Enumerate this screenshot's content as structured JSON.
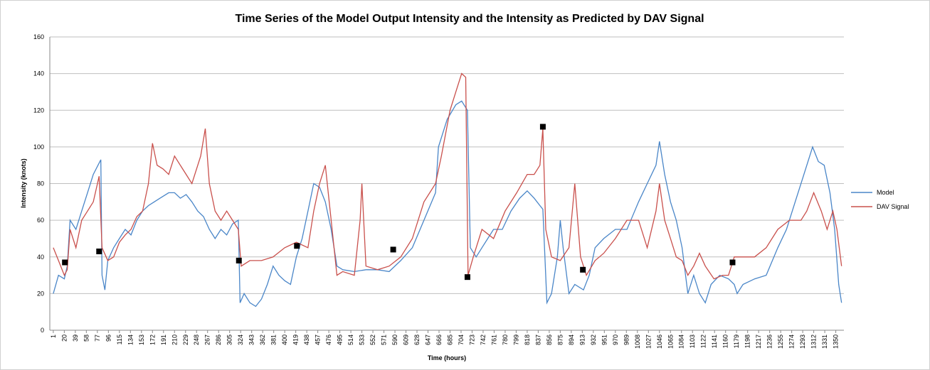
{
  "chart_data": {
    "type": "line",
    "title": "Time Series of the Model Output Intensity and the Intensity as Predicted by DAV Signal",
    "x_label": "Time (hours)",
    "y_label": "Intensity (knots)",
    "xlim": [
      -5,
      1364
    ],
    "ylim": [
      0,
      160
    ],
    "yticks": [
      0,
      20,
      40,
      60,
      80,
      100,
      120,
      140,
      160
    ],
    "xticks": [
      1,
      20,
      39,
      58,
      77,
      96,
      115,
      134,
      153,
      172,
      191,
      210,
      229,
      248,
      267,
      286,
      305,
      324,
      343,
      362,
      381,
      400,
      419,
      438,
      457,
      476,
      495,
      514,
      533,
      552,
      571,
      590,
      609,
      628,
      647,
      666,
      685,
      704,
      723,
      742,
      761,
      780,
      799,
      818,
      837,
      856,
      875,
      894,
      913,
      932,
      951,
      970,
      989,
      1008,
      1027,
      1046,
      1065,
      1084,
      1103,
      1122,
      1141,
      1160,
      1179,
      1198,
      1217,
      1236,
      1255,
      1274,
      1293,
      1312,
      1331,
      1350
    ],
    "grid": true,
    "legend": "right",
    "series": [
      {
        "name": "Model",
        "color": "#4a86c8",
        "x": [
          1,
          10,
          20,
          25,
          30,
          40,
          50,
          60,
          70,
          78,
          83,
          85,
          90,
          95,
          105,
          115,
          125,
          135,
          145,
          155,
          165,
          175,
          185,
          200,
          210,
          220,
          230,
          240,
          250,
          260,
          270,
          280,
          290,
          300,
          310,
          320,
          323,
          330,
          340,
          350,
          360,
          370,
          380,
          390,
          400,
          410,
          420,
          430,
          440,
          450,
          460,
          470,
          480,
          490,
          500,
          520,
          540,
          560,
          580,
          600,
          620,
          640,
          660,
          665,
          680,
          695,
          705,
          715,
          720,
          730,
          740,
          750,
          760,
          775,
          790,
          805,
          818,
          830,
          840,
          845,
          852,
          860,
          870,
          875,
          880,
          890,
          900,
          915,
          925,
          935,
          950,
          970,
          990,
          1010,
          1025,
          1040,
          1046,
          1055,
          1065,
          1075,
          1085,
          1095,
          1105,
          1115,
          1125,
          1135,
          1150,
          1165,
          1175,
          1180,
          1190,
          1210,
          1230,
          1250,
          1265,
          1280,
          1295,
          1310,
          1320,
          1330,
          1340,
          1348,
          1355,
          1360
        ],
        "values": [
          20,
          30,
          28,
          35,
          60,
          55,
          65,
          75,
          85,
          90,
          93,
          30,
          22,
          38,
          45,
          50,
          55,
          52,
          60,
          65,
          68,
          70,
          72,
          75,
          75,
          72,
          74,
          70,
          65,
          62,
          55,
          50,
          55,
          52,
          58,
          60,
          15,
          20,
          15,
          13,
          17,
          25,
          35,
          30,
          27,
          25,
          40,
          50,
          65,
          80,
          78,
          70,
          55,
          35,
          33,
          32,
          33,
          33,
          32,
          38,
          45,
          60,
          75,
          100,
          115,
          123,
          125,
          120,
          45,
          40,
          45,
          50,
          55,
          55,
          65,
          72,
          76,
          72,
          68,
          66,
          15,
          20,
          40,
          60,
          45,
          20,
          25,
          22,
          30,
          45,
          50,
          55,
          55,
          70,
          80,
          90,
          103,
          85,
          70,
          60,
          45,
          20,
          30,
          20,
          15,
          25,
          30,
          28,
          25,
          20,
          25,
          28,
          30,
          45,
          55,
          70,
          85,
          100,
          92,
          90,
          75,
          55,
          25,
          15
        ]
      },
      {
        "name": "DAV Signal",
        "color": "#c9504c",
        "x": [
          1,
          10,
          20,
          25,
          30,
          40,
          50,
          60,
          70,
          80,
          85,
          95,
          105,
          115,
          125,
          135,
          145,
          155,
          165,
          172,
          180,
          190,
          200,
          210,
          220,
          230,
          240,
          255,
          263,
          270,
          280,
          290,
          300,
          310,
          320,
          325,
          340,
          360,
          380,
          400,
          420,
          440,
          450,
          460,
          470,
          480,
          490,
          500,
          520,
          530,
          533,
          540,
          560,
          580,
          600,
          620,
          640,
          660,
          670,
          685,
          695,
          705,
          712,
          716,
          725,
          740,
          760,
          780,
          800,
          818,
          830,
          840,
          845,
          850,
          860,
          875,
          890,
          900,
          910,
          920,
          935,
          950,
          970,
          990,
          1010,
          1025,
          1040,
          1046,
          1055,
          1065,
          1075,
          1085,
          1095,
          1105,
          1115,
          1125,
          1140,
          1155,
          1165,
          1175,
          1190,
          1210,
          1230,
          1250,
          1270,
          1290,
          1300,
          1312,
          1325,
          1335,
          1345,
          1352,
          1360
        ],
        "values": [
          45,
          38,
          30,
          33,
          55,
          45,
          60,
          65,
          70,
          84,
          45,
          38,
          40,
          48,
          52,
          55,
          62,
          65,
          80,
          102,
          90,
          88,
          85,
          95,
          90,
          85,
          80,
          95,
          110,
          80,
          65,
          60,
          65,
          60,
          55,
          35,
          38,
          38,
          40,
          45,
          48,
          45,
          65,
          80,
          90,
          60,
          30,
          32,
          30,
          60,
          80,
          35,
          33,
          35,
          40,
          50,
          70,
          80,
          95,
          120,
          130,
          140,
          138,
          30,
          40,
          55,
          50,
          65,
          75,
          85,
          85,
          90,
          110,
          55,
          40,
          38,
          45,
          80,
          40,
          30,
          38,
          42,
          50,
          60,
          60,
          45,
          65,
          80,
          60,
          50,
          40,
          38,
          30,
          35,
          42,
          35,
          28,
          30,
          30,
          40,
          40,
          40,
          45,
          55,
          60,
          60,
          65,
          75,
          65,
          55,
          65,
          55,
          35
        ]
      }
    ],
    "markers": {
      "color": "#000000",
      "x": [
        21,
        80,
        321,
        421,
        587,
        715,
        845,
        914,
        1172
      ],
      "values": [
        37,
        43,
        38,
        46,
        44,
        29,
        111,
        33,
        37
      ]
    }
  }
}
